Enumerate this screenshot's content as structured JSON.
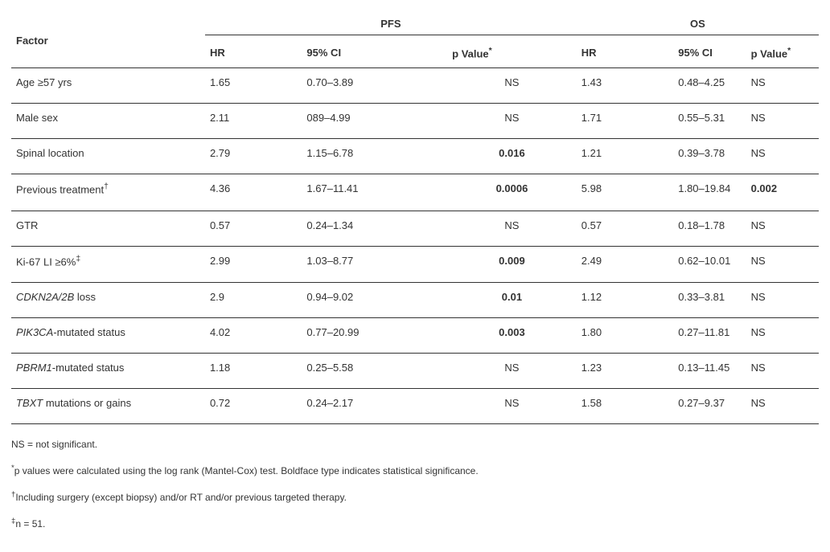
{
  "headers": {
    "factor": "Factor",
    "pfs": "PFS",
    "os": "OS",
    "hr": "HR",
    "ci": "95% CI",
    "p": "p Value"
  },
  "rows": [
    {
      "f": "Age ≥57 yrs",
      "hr1": "1.65",
      "ci1": "0.70–3.89",
      "p1": "NS",
      "p1b": false,
      "hr2": "1.43",
      "ci2": "0.48–4.25",
      "p2": "NS",
      "p2b": false,
      "italic": false,
      "dag": false,
      "ddag": false
    },
    {
      "f": "Male sex",
      "hr1": "2.11",
      "ci1": "089–4.99",
      "p1": "NS",
      "p1b": false,
      "hr2": "1.71",
      "ci2": "0.55–5.31",
      "p2": "NS",
      "p2b": false,
      "italic": false,
      "dag": false,
      "ddag": false
    },
    {
      "f": "Spinal location",
      "hr1": "2.79",
      "ci1": "1.15–6.78",
      "p1": "0.016",
      "p1b": true,
      "hr2": "1.21",
      "ci2": "0.39–3.78",
      "p2": "NS",
      "p2b": false,
      "italic": false,
      "dag": false,
      "ddag": false
    },
    {
      "f": "Previous treatment",
      "hr1": "4.36",
      "ci1": "1.67–11.41",
      "p1": "0.0006",
      "p1b": true,
      "hr2": "5.98",
      "ci2": "1.80–19.84",
      "p2": "0.002",
      "p2b": true,
      "italic": false,
      "dag": true,
      "ddag": false
    },
    {
      "f": "GTR",
      "hr1": "0.57",
      "ci1": "0.24–1.34",
      "p1": "NS",
      "p1b": false,
      "hr2": "0.57",
      "ci2": "0.18–1.78",
      "p2": "NS",
      "p2b": false,
      "italic": false,
      "dag": false,
      "ddag": false
    },
    {
      "f": "Ki-67 LI ≥6%",
      "hr1": "2.99",
      "ci1": "1.03–8.77",
      "p1": "0.009",
      "p1b": true,
      "hr2": "2.49",
      "ci2": "0.62–10.01",
      "p2": "NS",
      "p2b": false,
      "italic": false,
      "dag": false,
      "ddag": true
    },
    {
      "f": "CDKN2A/2B",
      "ftail": " loss",
      "hr1": "2.9",
      "ci1": "0.94–9.02",
      "p1": "0.01",
      "p1b": true,
      "hr2": "1.12",
      "ci2": "0.33–3.81",
      "p2": "NS",
      "p2b": false,
      "italic": true,
      "dag": false,
      "ddag": false
    },
    {
      "f": "PIK3CA",
      "ftail": "-mutated status",
      "hr1": "4.02",
      "ci1": "0.77–20.99",
      "p1": "0.003",
      "p1b": true,
      "hr2": "1.80",
      "ci2": "0.27–11.81",
      "p2": "NS",
      "p2b": false,
      "italic": true,
      "dag": false,
      "ddag": false
    },
    {
      "f": "PBRM1",
      "ftail": "-mutated status",
      "hr1": "1.18",
      "ci1": "0.25–5.58",
      "p1": "NS",
      "p1b": false,
      "hr2": "1.23",
      "ci2": "0.13–11.45",
      "p2": "NS",
      "p2b": false,
      "italic": true,
      "dag": false,
      "ddag": false
    },
    {
      "f": "TBXT",
      "ftail": " mutations or gains",
      "hr1": "0.72",
      "ci1": "0.24–2.17",
      "p1": "NS",
      "p1b": false,
      "hr2": "1.58",
      "ci2": "0.27–9.37",
      "p2": "NS",
      "p2b": false,
      "italic": true,
      "dag": false,
      "ddag": false
    }
  ],
  "footnotes": {
    "ns": "NS = not significant.",
    "ast": "p values were calculated using the log rank (Mantel-Cox) test. Boldface type indicates statistical significance.",
    "dag": "Including surgery (except biopsy) and/or RT and/or previous targeted therapy.",
    "ddag": "n = 51."
  }
}
